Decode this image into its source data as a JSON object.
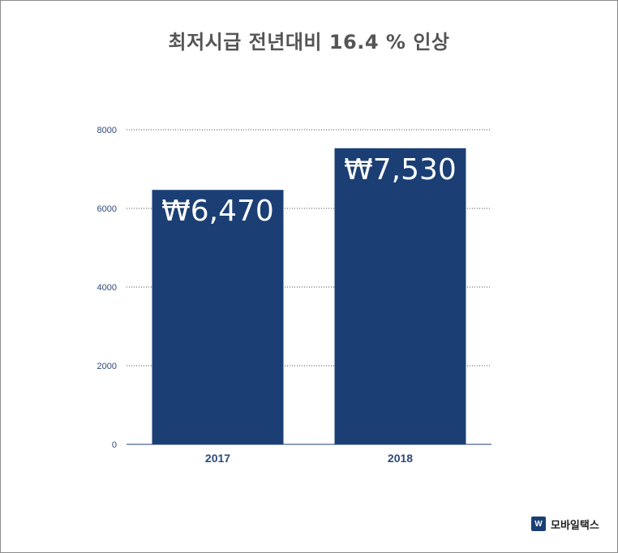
{
  "chart_data": {
    "type": "bar",
    "title": "최저시급 전년대비 16.4 % 인상",
    "categories": [
      "2017",
      "2018"
    ],
    "values": [
      6470,
      7530
    ],
    "data_labels": [
      "₩6,470",
      "₩7,530"
    ],
    "yticks": [
      0,
      2000,
      4000,
      6000,
      8000
    ],
    "ylim": [
      0,
      8000
    ],
    "xlabel": "",
    "ylabel": "",
    "grid": true,
    "bar_color": "#1b3f74"
  },
  "brand": {
    "logo_glyph": "W",
    "name": "모바일택스"
  },
  "colors": {
    "bar": "#1b3f74",
    "axis_text": "#2e4a7a",
    "title": "#555555"
  }
}
